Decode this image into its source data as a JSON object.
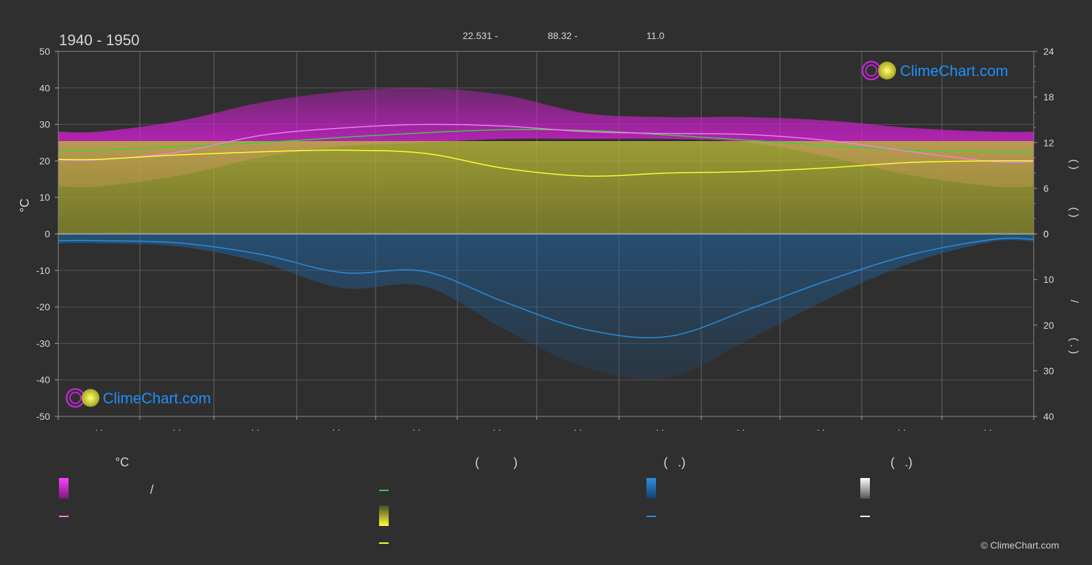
{
  "title": "1940 - 1950",
  "coords": {
    "lat": "22.531 -",
    "lon": "88.32 -",
    "elev": "11.0"
  },
  "logo_text": "ClimeChart.com",
  "copyright": "© ClimeChart.com",
  "left_axis_label": "°C",
  "right_axis_upper_label": "(   )",
  "right_axis_upper_label2": "(   )",
  "right_axis_lower_label": "/",
  "right_axis_lower_label2": "(  .  )",
  "month_labels": [
    "· ·",
    "· ·",
    "· ·",
    "· ·",
    "· ·",
    "· ·",
    "· ·",
    "· ·",
    "· ·",
    "· ·",
    "· ·",
    "· ·"
  ],
  "legend": {
    "col1_header": "°C",
    "col1_item1": "/",
    "col2_header": "(          )",
    "col3_header": "(   .)",
    "col4_header": "(   .)"
  },
  "colors": {
    "background": "#2f2f2f",
    "temp_range": "#d81fd8",
    "sunshine": "#b8b830",
    "precip": "#1e6db0",
    "daylight_line": "#3ad13a",
    "max_temp_line": "#f07ff0",
    "sunshine_line": "#ffff33",
    "precip_line": "#2a8fe0"
  },
  "chart_data": {
    "type": "area",
    "x": [
      "Jan",
      "Feb",
      "Mar",
      "Apr",
      "May",
      "Jun",
      "Jul",
      "Aug",
      "Sep",
      "Oct",
      "Nov",
      "Dec"
    ],
    "left_axis": {
      "label": "°C",
      "ylim": [
        -50,
        50
      ],
      "ticks": [
        50,
        40,
        30,
        20,
        10,
        0,
        -10,
        -20,
        -30,
        -40,
        -50
      ]
    },
    "right_axis_upper": {
      "ylim": [
        0,
        24
      ],
      "ticks": [
        24,
        18,
        12,
        6,
        0
      ]
    },
    "right_axis_lower": {
      "ylim": [
        0,
        40
      ],
      "ticks": [
        0,
        10,
        20,
        30,
        40
      ]
    },
    "grid": true,
    "series": [
      {
        "values": [
          11.0,
          11.5,
          12.0,
          12.7,
          13.3,
          13.7,
          13.6,
          13.0,
          12.3,
          11.6,
          11.0,
          10.8
        ]
      },
      {
        "values": [
          20.3,
          22.5,
          27.0,
          29.0,
          30.0,
          29.5,
          28.0,
          27.5,
          27.2,
          25.5,
          22.5,
          19.8
        ]
      },
      {
        "values": [
          9.8,
          10.4,
          10.8,
          11.0,
          10.6,
          8.6,
          7.6,
          8.0,
          8.2,
          8.7,
          9.4,
          9.6
        ]
      },
      {
        "values": [
          1.5,
          2.0,
          4.5,
          8.5,
          8.2,
          15.0,
          21.0,
          22.5,
          16.5,
          10.0,
          4.5,
          1.2
        ]
      }
    ],
    "band_max_temp": [
      28,
      31,
      36,
      39,
      40,
      38,
      33,
      32,
      32,
      31,
      29,
      28
    ],
    "band_min_temp": [
      13,
      16,
      21,
      24,
      25,
      26,
      26,
      26,
      25,
      21,
      16,
      13
    ]
  }
}
